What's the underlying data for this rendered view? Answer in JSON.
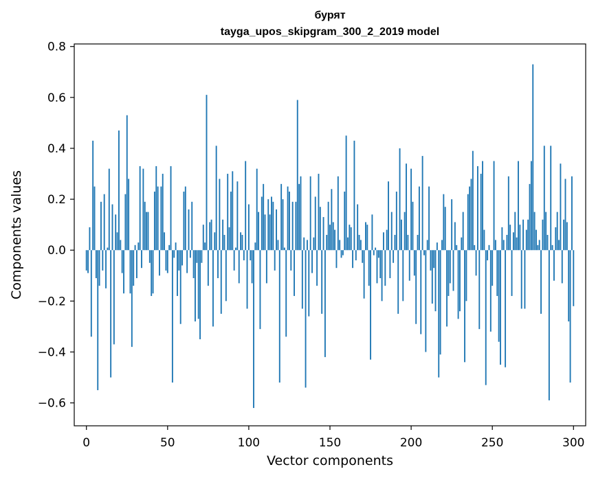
{
  "chart_data": {
    "type": "bar",
    "title_lines": [
      "бурят",
      "tayga_upos_skipgram_300_2_2019 model"
    ],
    "xlabel": "Vector components",
    "ylabel": "Components values",
    "xlim": [
      -7.5,
      307.5
    ],
    "ylim": [
      -0.69,
      0.81
    ],
    "xticks": [
      0,
      50,
      100,
      150,
      200,
      250,
      300
    ],
    "xtick_labels": [
      "0",
      "50",
      "100",
      "150",
      "200",
      "250",
      "300"
    ],
    "yticks": [
      -0.6,
      -0.4,
      -0.2,
      0.0,
      0.2,
      0.4,
      0.6,
      0.8
    ],
    "ytick_labels": [
      "−0.6",
      "−0.4",
      "−0.2",
      "0.0",
      "0.2",
      "0.4",
      "0.6",
      "0.8"
    ],
    "bar_color": "#1f77b4",
    "grid": false,
    "x": "0..299",
    "values": [
      -0.08,
      -0.09,
      0.09,
      -0.34,
      0.43,
      0.25,
      -0.11,
      -0.55,
      -0.14,
      0.19,
      -0.08,
      0.22,
      -0.15,
      0.01,
      0.32,
      -0.5,
      0.18,
      -0.37,
      0.14,
      0.07,
      0.47,
      0.04,
      -0.09,
      -0.17,
      0.22,
      0.53,
      0.28,
      -0.17,
      -0.38,
      -0.14,
      0.02,
      -0.11,
      0.03,
      0.33,
      -0.07,
      0.32,
      0.19,
      0.15,
      0.15,
      -0.05,
      -0.18,
      -0.17,
      0.23,
      0.33,
      0.25,
      -0.1,
      0.25,
      0.3,
      0.07,
      -0.08,
      -0.09,
      0.02,
      0.33,
      -0.52,
      -0.03,
      0.03,
      -0.18,
      -0.08,
      -0.29,
      -0.06,
      0.23,
      0.25,
      -0.09,
      0.16,
      -0.03,
      0.19,
      -0.11,
      -0.28,
      -0.05,
      -0.27,
      -0.35,
      -0.05,
      0.1,
      0.03,
      0.61,
      -0.14,
      0.11,
      0.12,
      -0.3,
      0.07,
      0.41,
      -0.11,
      0.28,
      -0.25,
      0.12,
      0.06,
      -0.2,
      0.3,
      0.09,
      0.23,
      0.31,
      -0.08,
      0.01,
      0.27,
      -0.13,
      0.07,
      0.06,
      -0.04,
      0.35,
      -0.23,
      0.18,
      -0.04,
      -0.13,
      -0.62,
      0.03,
      0.32,
      0.15,
      -0.31,
      0.21,
      0.26,
      0.14,
      -0.13,
      0.2,
      0.14,
      0.21,
      0.19,
      -0.08,
      0.16,
      0.04,
      -0.52,
      0.26,
      0.2,
      0.01,
      -0.34,
      0.25,
      0.23,
      -0.08,
      0.19,
      -0.18,
      0.19,
      0.59,
      0.26,
      0.29,
      -0.23,
      0.05,
      -0.54,
      0.04,
      -0.26,
      0.29,
      -0.09,
      0.05,
      0.21,
      -0.14,
      0.3,
      0.17,
      -0.25,
      0.13,
      -0.42,
      0.06,
      0.19,
      0.1,
      0.24,
      0.11,
      0.08,
      -0.07,
      0.29,
      0.04,
      -0.03,
      -0.02,
      0.23,
      0.45,
      0.05,
      0.1,
      0.09,
      -0.07,
      0.43,
      -0.04,
      0.18,
      0.06,
      0.04,
      -0.05,
      -0.19,
      0.11,
      0.1,
      -0.14,
      -0.43,
      0.14,
      -0.02,
      0.01,
      -0.13,
      -0.03,
      -0.11,
      -0.2,
      0.07,
      -0.14,
      0.08,
      0.27,
      -0.11,
      0.15,
      -0.05,
      0.06,
      0.23,
      -0.25,
      0.4,
      0.12,
      -0.2,
      0.15,
      0.34,
      0.06,
      -0.12,
      0.32,
      0.19,
      -0.1,
      -0.29,
      0.06,
      0.25,
      -0.33,
      0.37,
      -0.02,
      -0.4,
      0.04,
      0.25,
      -0.08,
      -0.21,
      -0.07,
      -0.24,
      0.03,
      -0.5,
      -0.41,
      0.04,
      0.22,
      0.17,
      -0.3,
      -0.18,
      -0.13,
      0.2,
      -0.16,
      0.11,
      0.02,
      -0.27,
      -0.24,
      0.05,
      0.15,
      -0.44,
      -0.2,
      0.22,
      0.25,
      0.28,
      0.39,
      0.02,
      -0.1,
      0.33,
      -0.31,
      0.3,
      0.35,
      0.08,
      -0.53,
      -0.04,
      0.02,
      -0.32,
      -0.14,
      0.35,
      0.04,
      -0.18,
      -0.36,
      -0.45,
      0.09,
      0.04,
      -0.46,
      0.06,
      0.29,
      0.1,
      -0.18,
      0.07,
      0.15,
      0.05,
      0.35,
      0.1,
      -0.23,
      0.12,
      -0.23,
      0.08,
      0.12,
      0.26,
      0.35,
      0.73,
      0.15,
      0.08,
      0.02,
      0.04,
      -0.25,
      0.12,
      0.41,
      0.15,
      0.06,
      -0.59,
      0.41,
      0.02,
      -0.12,
      0.09,
      0.15,
      0.04,
      0.34,
      -0.13,
      0.12,
      0.28,
      0.11,
      -0.28,
      -0.52,
      0.29,
      -0.22
    ]
  }
}
